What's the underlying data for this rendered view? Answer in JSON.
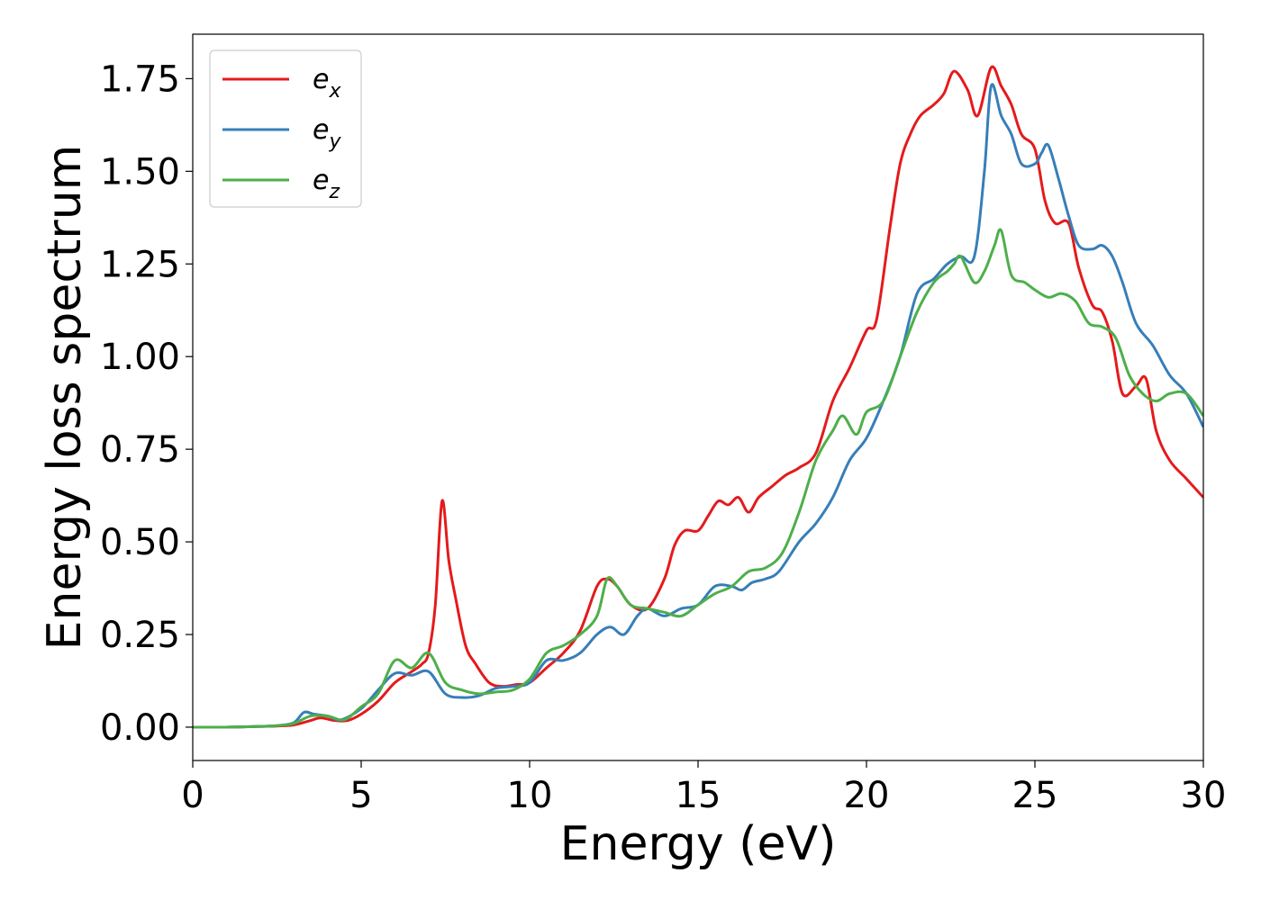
{
  "chart_data": {
    "type": "line",
    "xlabel": "Energy (eV)",
    "ylabel": "Energy loss spectrum",
    "xlim": [
      0,
      30
    ],
    "ylim": [
      -0.09,
      1.87
    ],
    "xticks": [
      0,
      5,
      10,
      15,
      20,
      25,
      30
    ],
    "xtick_labels": [
      "0",
      "5",
      "10",
      "15",
      "20",
      "25",
      "30"
    ],
    "yticks": [
      0.0,
      0.25,
      0.5,
      0.75,
      1.0,
      1.25,
      1.5,
      1.75
    ],
    "ytick_labels": [
      "0.00",
      "0.25",
      "0.50",
      "0.75",
      "1.00",
      "1.25",
      "1.50",
      "1.75"
    ],
    "grid": false,
    "legend_position": "top-left",
    "series": [
      {
        "name": "e_x",
        "label_base": "e",
        "label_sub": "x",
        "color": "#e41a1c",
        "x": [
          0,
          1,
          2,
          2.5,
          3,
          3.5,
          3.8,
          4.2,
          4.6,
          5,
          5.5,
          6,
          6.5,
          6.8,
          7,
          7.2,
          7.4,
          7.6,
          7.8,
          8.1,
          8.4,
          8.8,
          9.2,
          9.6,
          10,
          10.5,
          11,
          11.5,
          12,
          12.3,
          12.6,
          13,
          13.5,
          14,
          14.3,
          14.6,
          15,
          15.3,
          15.6,
          15.9,
          16.2,
          16.5,
          16.8,
          17.2,
          17.6,
          18,
          18.5,
          19,
          19.5,
          20,
          20.3,
          20.7,
          21,
          21.3,
          21.6,
          22,
          22.3,
          22.6,
          23,
          23.3,
          23.7,
          24,
          24.3,
          24.6,
          25,
          25.3,
          25.6,
          26,
          26.3,
          26.7,
          27,
          27.3,
          27.6,
          28,
          28.3,
          28.6,
          29,
          29.5,
          30
        ],
        "y": [
          0,
          0,
          0.002,
          0.003,
          0.006,
          0.018,
          0.025,
          0.018,
          0.018,
          0.035,
          0.07,
          0.12,
          0.15,
          0.17,
          0.2,
          0.33,
          0.61,
          0.45,
          0.35,
          0.22,
          0.17,
          0.12,
          0.11,
          0.115,
          0.12,
          0.16,
          0.2,
          0.26,
          0.38,
          0.4,
          0.38,
          0.33,
          0.32,
          0.4,
          0.49,
          0.53,
          0.53,
          0.57,
          0.61,
          0.6,
          0.62,
          0.58,
          0.62,
          0.65,
          0.68,
          0.7,
          0.74,
          0.88,
          0.97,
          1.07,
          1.1,
          1.35,
          1.52,
          1.6,
          1.65,
          1.68,
          1.71,
          1.77,
          1.72,
          1.65,
          1.78,
          1.73,
          1.68,
          1.6,
          1.56,
          1.42,
          1.36,
          1.36,
          1.24,
          1.14,
          1.12,
          1.04,
          0.9,
          0.92,
          0.94,
          0.8,
          0.72,
          0.67,
          0.62
        ]
      },
      {
        "name": "e_y",
        "label_base": "e",
        "label_sub": "y",
        "color": "#377eb8",
        "x": [
          0,
          1,
          2,
          2.5,
          3,
          3.3,
          3.6,
          4,
          4.4,
          5,
          5.5,
          6,
          6.5,
          7,
          7.5,
          8,
          8.5,
          9,
          9.5,
          10,
          10.5,
          11,
          11.5,
          12,
          12.4,
          12.8,
          13.2,
          13.5,
          14,
          14.5,
          15,
          15.5,
          16,
          16.3,
          16.6,
          17,
          17.4,
          18,
          18.5,
          19,
          19.5,
          20,
          20.5,
          21,
          21.5,
          22,
          22.4,
          22.8,
          23.2,
          23.5,
          23.7,
          24,
          24.3,
          24.6,
          25,
          25.2,
          25.4,
          25.7,
          26,
          26.3,
          26.7,
          27,
          27.3,
          27.6,
          28,
          28.5,
          29,
          29.5,
          30
        ],
        "y": [
          0,
          0,
          0.002,
          0.004,
          0.012,
          0.04,
          0.035,
          0.03,
          0.02,
          0.05,
          0.1,
          0.145,
          0.14,
          0.15,
          0.09,
          0.08,
          0.085,
          0.105,
          0.11,
          0.12,
          0.18,
          0.18,
          0.2,
          0.25,
          0.27,
          0.25,
          0.3,
          0.32,
          0.3,
          0.32,
          0.33,
          0.38,
          0.38,
          0.37,
          0.39,
          0.4,
          0.42,
          0.5,
          0.55,
          0.62,
          0.72,
          0.78,
          0.88,
          1.0,
          1.17,
          1.21,
          1.25,
          1.27,
          1.27,
          1.5,
          1.73,
          1.65,
          1.6,
          1.52,
          1.52,
          1.55,
          1.57,
          1.48,
          1.38,
          1.3,
          1.29,
          1.3,
          1.27,
          1.2,
          1.09,
          1.03,
          0.95,
          0.9,
          0.81
        ]
      },
      {
        "name": "e_z",
        "label_base": "e",
        "label_sub": "z",
        "color": "#4daf4a",
        "x": [
          0,
          1,
          2,
          2.5,
          3,
          3.5,
          4,
          4.5,
          5,
          5.5,
          6,
          6.5,
          7,
          7.5,
          8,
          8.5,
          9,
          9.5,
          10,
          10.5,
          11,
          11.5,
          12,
          12.3,
          12.6,
          13,
          13.5,
          14,
          14.5,
          15,
          15.5,
          16,
          16.5,
          17,
          17.5,
          18,
          18.5,
          19,
          19.3,
          19.7,
          20,
          20.5,
          21,
          21.5,
          22,
          22.4,
          22.6,
          22.8,
          23.2,
          23.5,
          23.8,
          24,
          24.3,
          24.7,
          25,
          25.4,
          25.8,
          26.2,
          26.6,
          27,
          27.4,
          27.8,
          28.2,
          28.6,
          29,
          29.5,
          30
        ],
        "y": [
          0,
          0,
          0.002,
          0.004,
          0.01,
          0.03,
          0.03,
          0.02,
          0.055,
          0.09,
          0.18,
          0.16,
          0.2,
          0.12,
          0.1,
          0.09,
          0.095,
          0.1,
          0.13,
          0.2,
          0.22,
          0.25,
          0.3,
          0.4,
          0.38,
          0.33,
          0.32,
          0.31,
          0.3,
          0.33,
          0.36,
          0.38,
          0.42,
          0.43,
          0.47,
          0.58,
          0.72,
          0.8,
          0.84,
          0.79,
          0.85,
          0.88,
          1.0,
          1.12,
          1.2,
          1.23,
          1.25,
          1.27,
          1.2,
          1.23,
          1.3,
          1.34,
          1.22,
          1.2,
          1.18,
          1.16,
          1.17,
          1.15,
          1.09,
          1.08,
          1.05,
          0.95,
          0.9,
          0.88,
          0.9,
          0.9,
          0.84
        ]
      }
    ]
  }
}
